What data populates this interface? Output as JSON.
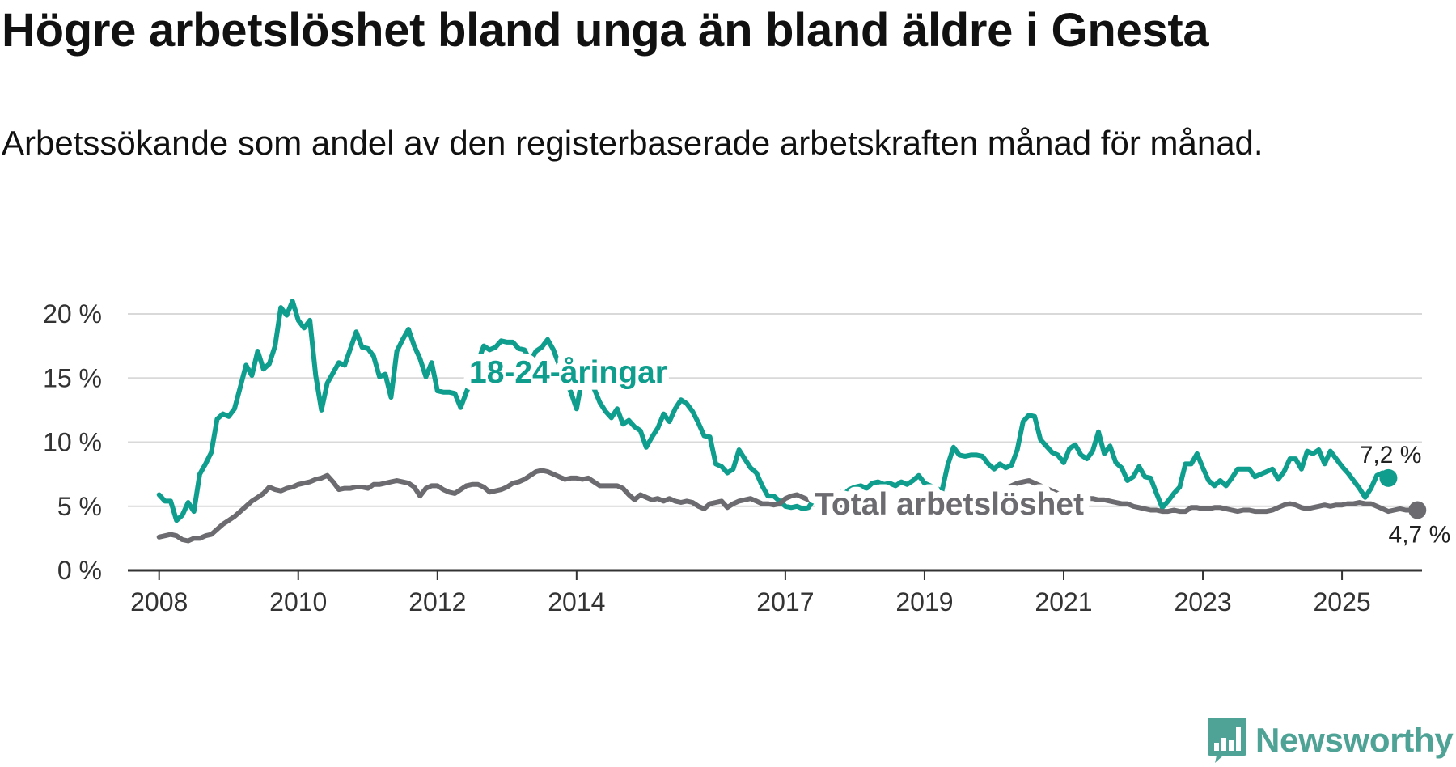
{
  "title": "Högre arbetslöshet bland unga än bland äldre i Gnesta",
  "subtitle": "Arbetssökande som andel av den registerbaserade arbetskraften månad för månad.",
  "brand": {
    "name": "Newsworthy",
    "color": "#4fa396",
    "icon": "bar-chart-logo-icon"
  },
  "chart_data": {
    "type": "line",
    "title": "Högre arbetslöshet bland unga än bland äldre i Gnesta",
    "xlabel": "",
    "ylabel": "",
    "x_start": 2008.0,
    "x_step_months": 1,
    "xlim": [
      2007.55,
      2026.15
    ],
    "ylim": [
      0,
      20
    ],
    "y_ticks": [
      0,
      5,
      10,
      15,
      20
    ],
    "y_tick_labels": [
      "0 %",
      "5 %",
      "10 %",
      "15 %",
      "20 %"
    ],
    "x_ticks": [
      2008,
      2010,
      2012,
      2014,
      2017,
      2019,
      2021,
      2023,
      2025
    ],
    "x_tick_labels": [
      "2008",
      "2010",
      "2012",
      "2014",
      "2017",
      "2019",
      "2021",
      "2023",
      "2025"
    ],
    "grid": true,
    "series": [
      {
        "name": "18-24-åringar",
        "color": "#0f9e8d",
        "end_label": "7,2 %",
        "values": [
          5.9,
          5.4,
          5.4,
          3.9,
          4.3,
          5.3,
          4.6,
          7.5,
          8.3,
          9.2,
          11.8,
          12.2,
          12.0,
          12.6,
          14.3,
          16.0,
          15.2,
          17.1,
          15.7,
          16.1,
          17.5,
          20.5,
          19.9,
          21.0,
          19.5,
          18.9,
          19.5,
          15.2,
          12.5,
          14.6,
          15.4,
          16.2,
          16.0,
          17.3,
          18.6,
          17.4,
          17.3,
          16.7,
          15.1,
          15.3,
          13.5,
          17.1,
          18.0,
          18.8,
          17.5,
          16.5,
          15.1,
          16.2,
          14.0,
          13.9,
          13.9,
          13.8,
          12.7,
          13.9,
          15.0,
          16.3,
          17.5,
          17.2,
          17.4,
          17.9,
          17.8,
          17.8,
          17.3,
          17.2,
          16.3,
          17.1,
          17.4,
          18.0,
          17.2,
          16.0,
          15.0,
          13.9,
          12.6,
          15.1,
          15.9,
          14.2,
          13.1,
          12.4,
          11.9,
          12.6,
          11.4,
          11.7,
          11.2,
          10.9,
          9.6,
          10.4,
          11.1,
          12.2,
          11.6,
          12.6,
          13.3,
          13.0,
          12.4,
          11.5,
          10.5,
          10.4,
          8.3,
          8.1,
          7.6,
          7.9,
          9.4,
          8.7,
          8.0,
          7.6,
          6.6,
          5.8,
          5.8,
          5.4,
          5.0,
          4.9,
          5.0,
          4.8,
          4.9,
          5.6,
          5.8,
          5.9,
          6.0,
          6.2,
          5.9,
          6.3,
          6.5,
          6.6,
          6.4,
          6.8,
          6.9,
          6.7,
          6.8,
          6.6,
          6.9,
          6.7,
          7.0,
          7.4,
          6.8,
          6.6,
          6.4,
          6.2,
          8.2,
          9.6,
          9.0,
          8.9,
          9.0,
          9.0,
          8.9,
          8.3,
          7.9,
          8.3,
          8.0,
          8.2,
          9.4,
          11.6,
          12.1,
          12.0,
          10.2,
          9.7,
          9.2,
          9.0,
          8.4,
          9.5,
          9.8,
          9.0,
          8.7,
          9.3,
          10.8,
          9.1,
          9.7,
          8.4,
          8.0,
          7.0,
          7.3,
          8.1,
          7.3,
          7.2,
          6.0,
          4.9,
          5.4,
          6.0,
          6.5,
          8.3,
          8.3,
          9.1,
          8.0,
          7.0,
          6.6,
          7.0,
          6.6,
          7.2,
          7.9,
          7.9,
          7.9,
          7.3,
          7.5,
          7.7,
          7.9,
          7.1,
          7.7,
          8.7,
          8.7,
          7.9,
          9.3,
          9.1,
          9.4,
          8.3,
          9.3,
          8.7,
          8.1,
          7.6,
          7.0,
          6.4,
          5.7,
          6.4,
          7.4,
          7.6,
          7.2
        ]
      },
      {
        "name": "Total arbetslöshet",
        "color": "#6b6b70",
        "end_label": "4,7 %",
        "values": [
          2.6,
          2.7,
          2.8,
          2.7,
          2.4,
          2.3,
          2.5,
          2.5,
          2.7,
          2.8,
          3.2,
          3.6,
          3.9,
          4.2,
          4.6,
          5.0,
          5.4,
          5.7,
          6.0,
          6.5,
          6.3,
          6.2,
          6.4,
          6.5,
          6.7,
          6.8,
          6.9,
          7.1,
          7.2,
          7.4,
          6.9,
          6.3,
          6.4,
          6.4,
          6.5,
          6.5,
          6.4,
          6.7,
          6.7,
          6.8,
          6.9,
          7.0,
          6.9,
          6.8,
          6.5,
          5.8,
          6.4,
          6.6,
          6.6,
          6.3,
          6.1,
          6.0,
          6.3,
          6.6,
          6.7,
          6.7,
          6.5,
          6.1,
          6.2,
          6.3,
          6.5,
          6.8,
          6.9,
          7.1,
          7.4,
          7.7,
          7.8,
          7.7,
          7.5,
          7.3,
          7.1,
          7.2,
          7.2,
          7.1,
          7.2,
          6.9,
          6.6,
          6.6,
          6.6,
          6.6,
          6.4,
          5.9,
          5.5,
          5.9,
          5.7,
          5.5,
          5.6,
          5.4,
          5.6,
          5.4,
          5.3,
          5.4,
          5.3,
          5.0,
          4.8,
          5.2,
          5.3,
          5.4,
          4.9,
          5.2,
          5.4,
          5.5,
          5.6,
          5.4,
          5.2,
          5.2,
          5.1,
          5.2,
          5.6,
          5.8,
          5.9,
          5.7,
          5.5,
          5.6,
          5.7,
          5.5,
          5.4,
          5.2,
          5.0,
          4.9,
          4.9,
          4.8,
          4.9,
          5.0,
          5.0,
          4.9,
          4.9,
          4.9,
          4.8,
          4.8,
          4.8,
          4.8,
          4.9,
          4.9,
          4.9,
          4.9,
          4.9,
          4.9,
          5.2,
          5.4,
          5.6,
          5.7,
          5.9,
          6.0,
          6.1,
          6.2,
          6.4,
          6.6,
          6.8,
          6.9,
          7.0,
          6.8,
          6.6,
          6.4,
          6.2,
          6.0,
          5.9,
          5.8,
          5.8,
          5.7,
          5.6,
          5.6,
          5.5,
          5.5,
          5.4,
          5.3,
          5.2,
          5.2,
          5.0,
          4.9,
          4.8,
          4.7,
          4.7,
          4.6,
          4.6,
          4.7,
          4.6,
          4.6,
          4.9,
          4.9,
          4.8,
          4.8,
          4.9,
          4.9,
          4.8,
          4.7,
          4.6,
          4.7,
          4.7,
          4.6,
          4.6,
          4.6,
          4.7,
          4.9,
          5.1,
          5.2,
          5.1,
          4.9,
          4.8,
          4.9,
          5.0,
          5.1,
          5.0,
          5.1,
          5.1,
          5.2,
          5.2,
          5.3,
          5.2,
          5.2,
          5.0,
          4.8,
          4.6,
          4.7,
          4.8,
          4.7,
          4.7,
          4.7
        ]
      }
    ]
  }
}
